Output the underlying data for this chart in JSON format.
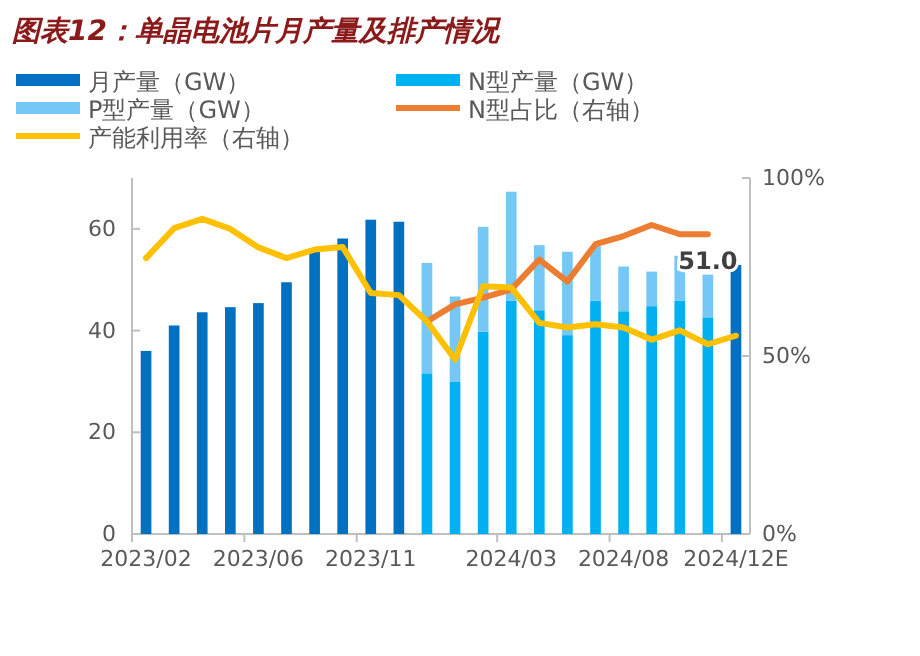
{
  "chart_data": {
    "type": "bar",
    "title": "图表12：单晶电池片月产量及排产情况",
    "categories": [
      "2023/02",
      null,
      null,
      null,
      "2023/06",
      null,
      null,
      null,
      "2023/11",
      null,
      null,
      null,
      null,
      "2024/03",
      null,
      null,
      null,
      "2024/08",
      null,
      null,
      null,
      "2024/12E"
    ],
    "stacked": true,
    "series": [
      {
        "name": "月产量（GW）",
        "color": "#0070c0",
        "values": [
          36,
          41,
          43.6,
          44.6,
          45.4,
          49.5,
          55.6,
          58.1,
          61.8,
          61.4,
          null,
          null,
          null,
          null,
          null,
          null,
          null,
          null,
          null,
          null,
          null,
          52.9
        ]
      },
      {
        "name": "N型产量（GW）",
        "color": "#00b0f0",
        "values": [
          null,
          null,
          null,
          null,
          null,
          null,
          null,
          null,
          null,
          null,
          31.6,
          29.9,
          39.8,
          45.9,
          44.0,
          39.1,
          45.9,
          43.8,
          44.8,
          45.9,
          42.6,
          null
        ]
      },
      {
        "name": "P型产量（GW）",
        "color": "#75c8f5",
        "values": [
          null,
          null,
          null,
          null,
          null,
          null,
          null,
          null,
          null,
          null,
          21.7,
          16.8,
          20.6,
          21.4,
          12.8,
          16.4,
          10.7,
          8.8,
          6.8,
          8.8,
          8.4,
          null
        ]
      },
      {
        "name": "N型占比（右轴）",
        "type": "line",
        "axis": "y2",
        "color": "#ed7d31",
        "values": [
          null,
          null,
          null,
          null,
          null,
          null,
          null,
          null,
          null,
          null,
          59.7,
          64.5,
          66.4,
          68.7,
          77.1,
          70.9,
          81.4,
          83.7,
          86.8,
          84.2,
          84.2,
          null
        ]
      },
      {
        "name": "产能利用率（右轴）",
        "type": "line",
        "axis": "y2",
        "color": "#ffc000",
        "values": [
          77.5,
          85.9,
          88.5,
          85.7,
          80.5,
          77.5,
          79.9,
          80.6,
          67.7,
          67.1,
          59.7,
          49,
          69.6,
          69.2,
          59.3,
          58,
          58.9,
          58,
          54.6,
          57.2,
          53.3,
          55.7
        ]
      }
    ],
    "totals": [
      null,
      null,
      null,
      null,
      null,
      null,
      null,
      null,
      null,
      null,
      null,
      null,
      null,
      null,
      null,
      null,
      null,
      null,
      null,
      null,
      "51.0",
      null
    ],
    "ylim": [
      0,
      70
    ],
    "yticks": [
      0,
      20,
      40,
      60
    ],
    "y2lim": [
      0,
      100
    ],
    "y2ticks": [
      {
        "value": 0,
        "label": "0%"
      },
      {
        "value": 50,
        "label": "50%"
      },
      {
        "value": 100,
        "label": "100%"
      }
    ],
    "legend": "top"
  }
}
